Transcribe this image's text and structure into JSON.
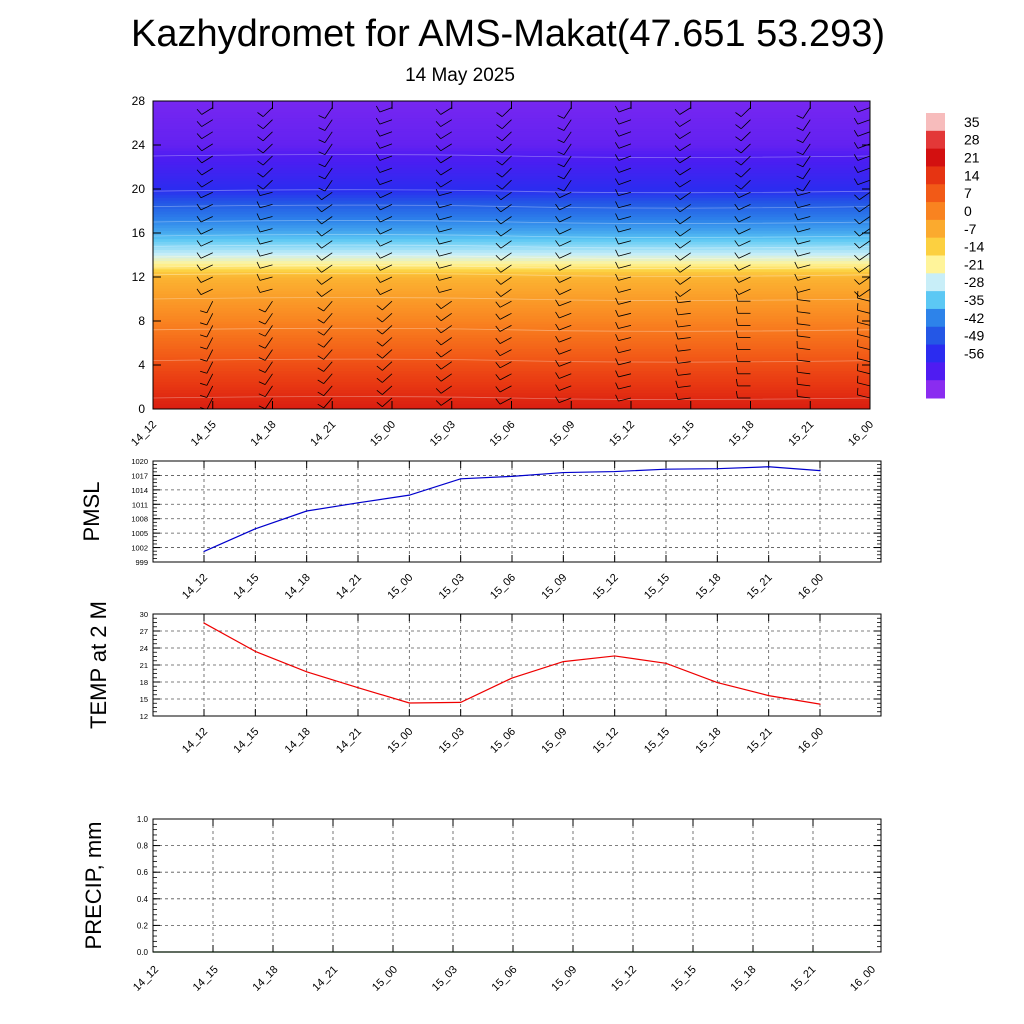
{
  "title": "Kazhydromet for AMS-Makat(47.651 53.293)",
  "subtitle": "14 May 2025",
  "chart_data": [
    {
      "type": "heatmap",
      "name": "temperature-wind-cross-section",
      "x_tick_labels": [
        "14_12",
        "14_15",
        "14_18",
        "14_21",
        "15_00",
        "15_03",
        "15_06",
        "15_09",
        "15_12",
        "15_15",
        "15_18",
        "15_21",
        "16_00"
      ],
      "y_tick_labels": [
        "0",
        "4",
        "8",
        "12",
        "16",
        "20",
        "24",
        "28"
      ],
      "ylim": [
        0,
        28
      ],
      "colorbar_labels": [
        "35",
        "28",
        "21",
        "14",
        "7",
        "0",
        "-7",
        "-14",
        "-21",
        "-28",
        "-35",
        "-42",
        "-49",
        "-56"
      ],
      "colorbar_colors": [
        "#f7bcbc",
        "#e33838",
        "#d31010",
        "#e63412",
        "#f25a17",
        "#f98320",
        "#fbaa2e",
        "#fcd040",
        "#fff49a",
        "#c8eef8",
        "#5cc8f4",
        "#2d83ea",
        "#2457e6",
        "#2b2cf0",
        "#4f1cf2",
        "#8a2cf0"
      ],
      "profile_levels": [
        0,
        4,
        8,
        12,
        13,
        16,
        20,
        24,
        28
      ],
      "temperature_profile": [
        30,
        22,
        12,
        2,
        -8,
        -30,
        -50,
        -58,
        -60
      ],
      "wind_barbs": "present at every level and time"
    },
    {
      "type": "line",
      "name": "pmsl",
      "ylabel": "PMSL",
      "x": [
        "14_12",
        "14_15",
        "14_18",
        "14_21",
        "15_00",
        "15_03",
        "15_06",
        "15_09",
        "15_12",
        "15_15",
        "15_18",
        "15_21",
        "16_00"
      ],
      "y_tick_labels": [
        "999",
        "1002",
        "1005",
        "1008",
        "1011",
        "1014",
        "1017",
        "1020"
      ],
      "ylim": [
        999,
        1020
      ],
      "series": [
        {
          "color": "#0000cc",
          "values": [
            1001.2,
            1005.9,
            1009.6,
            1011.3,
            1012.9,
            1016.3,
            1016.8,
            1017.6,
            1017.8,
            1018.3,
            1018.4,
            1018.8,
            1018.0
          ]
        }
      ]
    },
    {
      "type": "line",
      "name": "temp",
      "ylabel": "TEMP at 2 M",
      "x": [
        "14_12",
        "14_15",
        "14_18",
        "14_21",
        "15_00",
        "15_03",
        "15_06",
        "15_09",
        "15_12",
        "15_15",
        "15_18",
        "15_21",
        "16_00"
      ],
      "y_tick_labels": [
        "12",
        "15",
        "18",
        "21",
        "24",
        "27",
        "30"
      ],
      "ylim": [
        12,
        30
      ],
      "series": [
        {
          "color": "#ee0000",
          "values": [
            28.4,
            23.4,
            19.8,
            17.0,
            14.3,
            14.4,
            18.7,
            21.6,
            22.6,
            21.3,
            17.9,
            15.6,
            14.1
          ]
        }
      ]
    },
    {
      "type": "line",
      "name": "precip",
      "ylabel": "PRECIP, mm",
      "x_tick_labels": [
        "14_12",
        "14_15",
        "14_18",
        "14_21",
        "15_00",
        "15_03",
        "15_06",
        "15_09",
        "15_12",
        "15_15",
        "15_18",
        "15_21",
        "16_00"
      ],
      "y_tick_labels": [
        "0.0",
        "0.2",
        "0.4",
        "0.6",
        "0.8",
        "1.0"
      ],
      "ylim": [
        0,
        1
      ],
      "series": [
        {
          "color": "#006600",
          "values": [
            0,
            0,
            0,
            0,
            0,
            0,
            0,
            0,
            0,
            0,
            0,
            0,
            0
          ]
        }
      ]
    }
  ]
}
